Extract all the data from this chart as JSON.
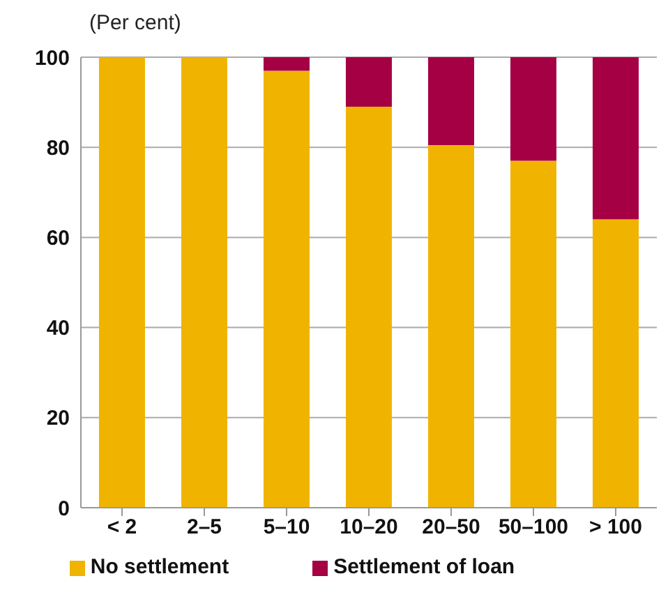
{
  "chart_data": {
    "type": "bar",
    "stacked": true,
    "ylabel": "(Per cent)",
    "categories": [
      "< 2",
      "2–5",
      "5–10",
      "10–20",
      "20–50",
      "50–100",
      "> 100"
    ],
    "series": [
      {
        "name": "No settlement",
        "color": "#f0b400",
        "values": [
          100,
          100,
          97,
          89,
          80.5,
          77,
          64
        ]
      },
      {
        "name": "Settlement of loan",
        "color": "#a50044",
        "values": [
          0,
          0,
          3,
          11,
          19.5,
          23,
          36
        ]
      }
    ],
    "ylim": [
      0,
      100
    ],
    "yticks": [
      0,
      20,
      40,
      60,
      80,
      100
    ],
    "grid": "y",
    "legend": "bottom"
  }
}
